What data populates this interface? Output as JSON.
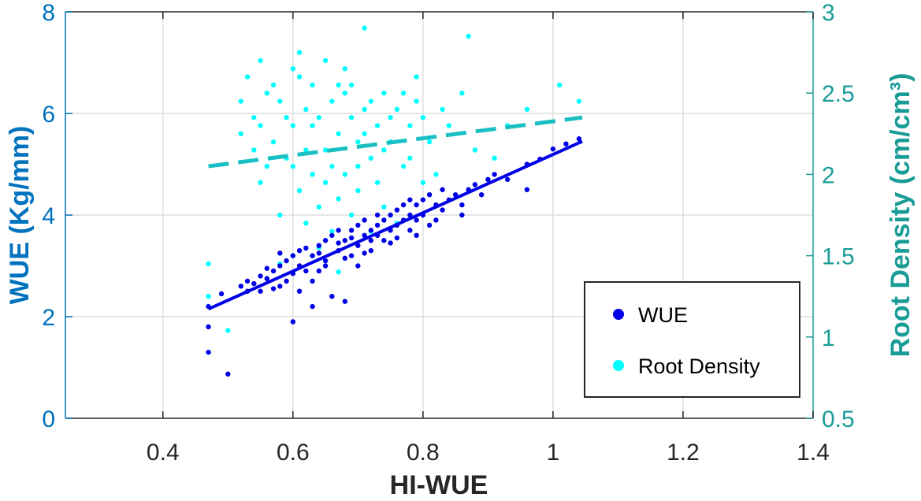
{
  "chart_data": {
    "type": "scatter",
    "xlabel": "HI-WUE",
    "ylabel_left": "WUE (Kg/mm)",
    "ylabel_right": "Root Density (cm/cm³)",
    "xlim": [
      0.25,
      1.4
    ],
    "ylim_left": [
      0,
      8
    ],
    "ylim_right": [
      0.5,
      3
    ],
    "xticks": [
      0.4,
      0.6,
      0.8,
      1.0,
      1.2,
      1.4
    ],
    "xtick_labels": [
      "0.4",
      "0.6",
      "0.8",
      "1",
      "1.2",
      "1.4"
    ],
    "yticks_left": [
      0,
      2,
      4,
      6,
      8
    ],
    "ytick_labels_left": [
      "0",
      "2",
      "4",
      "6",
      "8"
    ],
    "yticks_right": [
      0.5,
      1,
      1.5,
      2,
      2.5,
      3
    ],
    "ytick_labels_right": [
      "0.5",
      "1",
      "1.5",
      "2",
      "2.5",
      "3"
    ],
    "grid": true,
    "legend_position": "bottom-right",
    "colors": {
      "wue": "#0000E6",
      "root_density": "#00FFFF",
      "root_fit": "#1ABFC4",
      "left_axis": "#0072BD",
      "right_axis": "#1A9C96",
      "grid": "#DEDEDE",
      "frame": "#262626"
    },
    "series": [
      {
        "name": "WUE",
        "axis": "left",
        "marker": "dot",
        "fit": {
          "style": "solid",
          "x": [
            0.47,
            1.045
          ],
          "y": [
            2.15,
            5.45
          ]
        },
        "points": [
          [
            0.47,
            1.8
          ],
          [
            0.47,
            1.3
          ],
          [
            0.47,
            2.2
          ],
          [
            0.5,
            0.87
          ],
          [
            0.49,
            2.45
          ],
          [
            0.52,
            2.6
          ],
          [
            0.53,
            2.7
          ],
          [
            0.54,
            2.65
          ],
          [
            0.55,
            2.8
          ],
          [
            0.56,
            2.75
          ],
          [
            0.57,
            2.9
          ],
          [
            0.58,
            3.0
          ],
          [
            0.58,
            2.6
          ],
          [
            0.59,
            3.1
          ],
          [
            0.6,
            3.2
          ],
          [
            0.6,
            1.9
          ],
          [
            0.61,
            3.3
          ],
          [
            0.61,
            2.5
          ],
          [
            0.62,
            3.35
          ],
          [
            0.63,
            3.2
          ],
          [
            0.63,
            2.7
          ],
          [
            0.64,
            3.4
          ],
          [
            0.64,
            2.9
          ],
          [
            0.65,
            3.5
          ],
          [
            0.65,
            3.1
          ],
          [
            0.66,
            3.6
          ],
          [
            0.66,
            2.4
          ],
          [
            0.67,
            3.3
          ],
          [
            0.67,
            3.7
          ],
          [
            0.68,
            3.5
          ],
          [
            0.68,
            2.3
          ],
          [
            0.69,
            3.7
          ],
          [
            0.69,
            3.2
          ],
          [
            0.7,
            3.8
          ],
          [
            0.7,
            3.4
          ],
          [
            0.71,
            3.6
          ],
          [
            0.71,
            3.9
          ],
          [
            0.72,
            3.7
          ],
          [
            0.72,
            3.3
          ],
          [
            0.73,
            3.8
          ],
          [
            0.73,
            4.0
          ],
          [
            0.74,
            3.9
          ],
          [
            0.74,
            3.5
          ],
          [
            0.75,
            4.0
          ],
          [
            0.75,
            3.7
          ],
          [
            0.76,
            4.1
          ],
          [
            0.76,
            3.8
          ],
          [
            0.77,
            4.2
          ],
          [
            0.77,
            3.9
          ],
          [
            0.78,
            4.0
          ],
          [
            0.78,
            4.3
          ],
          [
            0.79,
            4.2
          ],
          [
            0.79,
            3.9
          ],
          [
            0.8,
            4.3
          ],
          [
            0.8,
            4.0
          ],
          [
            0.81,
            4.4
          ],
          [
            0.81,
            3.8
          ],
          [
            0.82,
            4.2
          ],
          [
            0.83,
            4.5
          ],
          [
            0.83,
            4.1
          ],
          [
            0.84,
            4.3
          ],
          [
            0.85,
            4.4
          ],
          [
            0.86,
            4.2
          ],
          [
            0.87,
            4.5
          ],
          [
            0.88,
            4.6
          ],
          [
            0.89,
            4.4
          ],
          [
            0.9,
            4.7
          ],
          [
            0.91,
            4.8
          ],
          [
            0.93,
            4.7
          ],
          [
            0.96,
            5.0
          ],
          [
            0.96,
            4.5
          ],
          [
            0.98,
            5.1
          ],
          [
            1.0,
            5.3
          ],
          [
            1.02,
            5.4
          ],
          [
            1.04,
            5.5
          ],
          [
            0.55,
            2.5
          ],
          [
            0.57,
            2.55
          ],
          [
            0.59,
            2.7
          ],
          [
            0.62,
            2.9
          ],
          [
            0.65,
            3.0
          ],
          [
            0.68,
            3.15
          ],
          [
            0.7,
            3.0
          ],
          [
            0.72,
            3.5
          ],
          [
            0.75,
            3.45
          ],
          [
            0.78,
            3.7
          ],
          [
            0.82,
            3.9
          ],
          [
            0.86,
            4.0
          ],
          [
            0.63,
            2.2
          ],
          [
            0.6,
            2.85
          ],
          [
            0.56,
            2.95
          ],
          [
            0.53,
            2.5
          ],
          [
            0.58,
            3.25
          ],
          [
            0.61,
            3.0
          ],
          [
            0.64,
            3.25
          ],
          [
            0.67,
            3.45
          ],
          [
            0.69,
            3.55
          ],
          [
            0.71,
            3.25
          ],
          [
            0.73,
            3.6
          ],
          [
            0.76,
            3.55
          ],
          [
            0.79,
            3.6
          ]
        ]
      },
      {
        "name": "Root Density",
        "axis": "right",
        "marker": "dot",
        "fit": {
          "style": "dashed",
          "x": [
            0.47,
            1.045
          ],
          "y": [
            2.05,
            2.35
          ]
        },
        "points": [
          [
            0.47,
            1.45
          ],
          [
            0.47,
            1.25
          ],
          [
            0.5,
            1.04
          ],
          [
            0.52,
            2.25
          ],
          [
            0.53,
            2.6
          ],
          [
            0.54,
            2.35
          ],
          [
            0.55,
            2.7
          ],
          [
            0.55,
            1.95
          ],
          [
            0.56,
            2.5
          ],
          [
            0.57,
            2.2
          ],
          [
            0.58,
            1.75
          ],
          [
            0.58,
            2.45
          ],
          [
            0.59,
            2.1
          ],
          [
            0.6,
            2.65
          ],
          [
            0.6,
            2.3
          ],
          [
            0.61,
            1.9
          ],
          [
            0.61,
            2.6
          ],
          [
            0.62,
            2.4
          ],
          [
            0.62,
            1.7
          ],
          [
            0.63,
            2.55
          ],
          [
            0.63,
            2.0
          ],
          [
            0.64,
            2.35
          ],
          [
            0.64,
            1.8
          ],
          [
            0.65,
            2.7
          ],
          [
            0.65,
            2.15
          ],
          [
            0.66,
            1.65
          ],
          [
            0.66,
            2.45
          ],
          [
            0.67,
            2.25
          ],
          [
            0.67,
            1.85
          ],
          [
            0.68,
            2.5
          ],
          [
            0.68,
            2.0
          ],
          [
            0.69,
            1.75
          ],
          [
            0.69,
            2.35
          ],
          [
            0.7,
            2.2
          ],
          [
            0.7,
            1.9
          ],
          [
            0.71,
            2.9
          ],
          [
            0.71,
            2.4
          ],
          [
            0.72,
            1.65
          ],
          [
            0.72,
            2.1
          ],
          [
            0.73,
            2.3
          ],
          [
            0.73,
            1.95
          ],
          [
            0.74,
            2.5
          ],
          [
            0.74,
            1.8
          ],
          [
            0.75,
            2.2
          ],
          [
            0.76,
            2.4
          ],
          [
            0.76,
            1.7
          ],
          [
            0.77,
            2.05
          ],
          [
            0.78,
            2.3
          ],
          [
            0.79,
            2.6
          ],
          [
            0.79,
            2.45
          ],
          [
            0.8,
            2.35
          ],
          [
            0.81,
            2.2
          ],
          [
            0.82,
            2.0
          ],
          [
            0.84,
            2.3
          ],
          [
            0.87,
            2.85
          ],
          [
            0.88,
            2.15
          ],
          [
            0.91,
            2.1
          ],
          [
            0.96,
            2.4
          ],
          [
            1.01,
            2.55
          ],
          [
            1.04,
            2.45
          ],
          [
            0.56,
            2.05
          ],
          [
            0.59,
            2.35
          ],
          [
            0.62,
            2.15
          ],
          [
            0.65,
            1.95
          ],
          [
            0.67,
            2.55
          ],
          [
            0.7,
            2.05
          ],
          [
            0.72,
            2.45
          ],
          [
            0.74,
            2.15
          ],
          [
            0.77,
            2.5
          ],
          [
            0.8,
            1.95
          ],
          [
            0.54,
            2.15
          ],
          [
            0.57,
            2.55
          ],
          [
            0.6,
            2.05
          ],
          [
            0.63,
            2.3
          ],
          [
            0.66,
            2.05
          ],
          [
            0.69,
            2.55
          ],
          [
            0.71,
            2.25
          ],
          [
            0.75,
            2.35
          ],
          [
            0.78,
            2.1
          ],
          [
            0.83,
            2.4
          ],
          [
            0.58,
            1.45
          ],
          [
            0.6,
            1.5
          ],
          [
            0.64,
            1.55
          ],
          [
            0.67,
            1.4
          ],
          [
            0.61,
            2.75
          ],
          [
            0.52,
            2.45
          ],
          [
            0.55,
            2.3
          ],
          [
            0.86,
            2.5
          ],
          [
            0.93,
            2.3
          ],
          [
            0.68,
            2.65
          ]
        ]
      }
    ]
  }
}
